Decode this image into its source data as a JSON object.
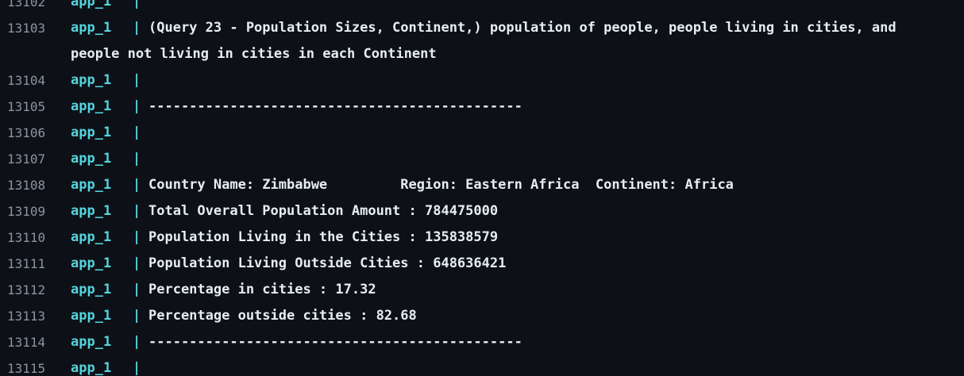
{
  "service": "app_1",
  "separator": "|",
  "lines": [
    {
      "num": "13102",
      "text": ""
    },
    {
      "num": "13103",
      "text": "(Query 23 - Population Sizes, Continent,) population of people, people living in cities, and people not living in cities in each Continent"
    },
    {
      "num": "13104",
      "text": ""
    },
    {
      "num": "13105",
      "text": "----------------------------------------------"
    },
    {
      "num": "13106",
      "text": ""
    },
    {
      "num": "13107",
      "text": ""
    },
    {
      "num": "13108",
      "text": "Country Name: Zimbabwe         Region: Eastern Africa  Continent: Africa"
    },
    {
      "num": "13109",
      "text": "Total Overall Population Amount : 784475000"
    },
    {
      "num": "13110",
      "text": "Population Living in the Cities : 135838579"
    },
    {
      "num": "13111",
      "text": "Population Living Outside Cities : 648636421"
    },
    {
      "num": "13112",
      "text": "Percentage in cities : 17.32"
    },
    {
      "num": "13113",
      "text": "Percentage outside cities : 82.68"
    },
    {
      "num": "13114",
      "text": "----------------------------------------------"
    },
    {
      "num": "13115",
      "text": ""
    }
  ]
}
